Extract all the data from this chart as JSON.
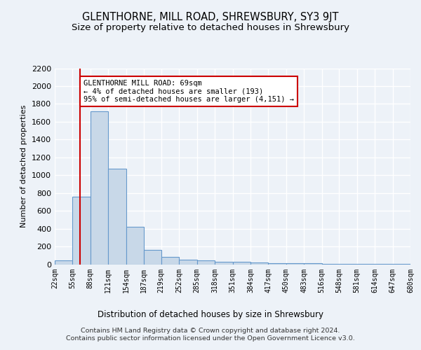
{
  "title": "GLENTHORNE, MILL ROAD, SHREWSBURY, SY3 9JT",
  "subtitle": "Size of property relative to detached houses in Shrewsbury",
  "xlabel": "Distribution of detached houses by size in Shrewsbury",
  "ylabel": "Number of detached properties",
  "bar_values": [
    45,
    760,
    1720,
    1070,
    420,
    160,
    85,
    50,
    40,
    30,
    25,
    20,
    15,
    10,
    8,
    6,
    5,
    4,
    3,
    2
  ],
  "bin_edges": [
    22,
    55,
    88,
    121,
    154,
    187,
    219,
    252,
    285,
    318,
    351,
    384,
    417,
    450,
    483,
    516,
    548,
    581,
    614,
    647,
    680
  ],
  "bar_color": "#c8d8e8",
  "bar_edge_color": "#6699cc",
  "annotation_text": "GLENTHORNE MILL ROAD: 69sqm\n← 4% of detached houses are smaller (193)\n95% of semi-detached houses are larger (4,151) →",
  "annotation_box_color": "#ffffff",
  "annotation_box_edge": "#cc0000",
  "vline_color": "#cc0000",
  "vline_x": 69,
  "ylim": [
    0,
    2200
  ],
  "yticks": [
    0,
    200,
    400,
    600,
    800,
    1000,
    1200,
    1400,
    1600,
    1800,
    2000,
    2200
  ],
  "background_color": "#edf2f8",
  "plot_bg_color": "#edf2f8",
  "grid_color": "#ffffff",
  "footer": "Contains HM Land Registry data © Crown copyright and database right 2024.\nContains public sector information licensed under the Open Government Licence v3.0.",
  "title_fontsize": 10.5,
  "subtitle_fontsize": 9.5
}
